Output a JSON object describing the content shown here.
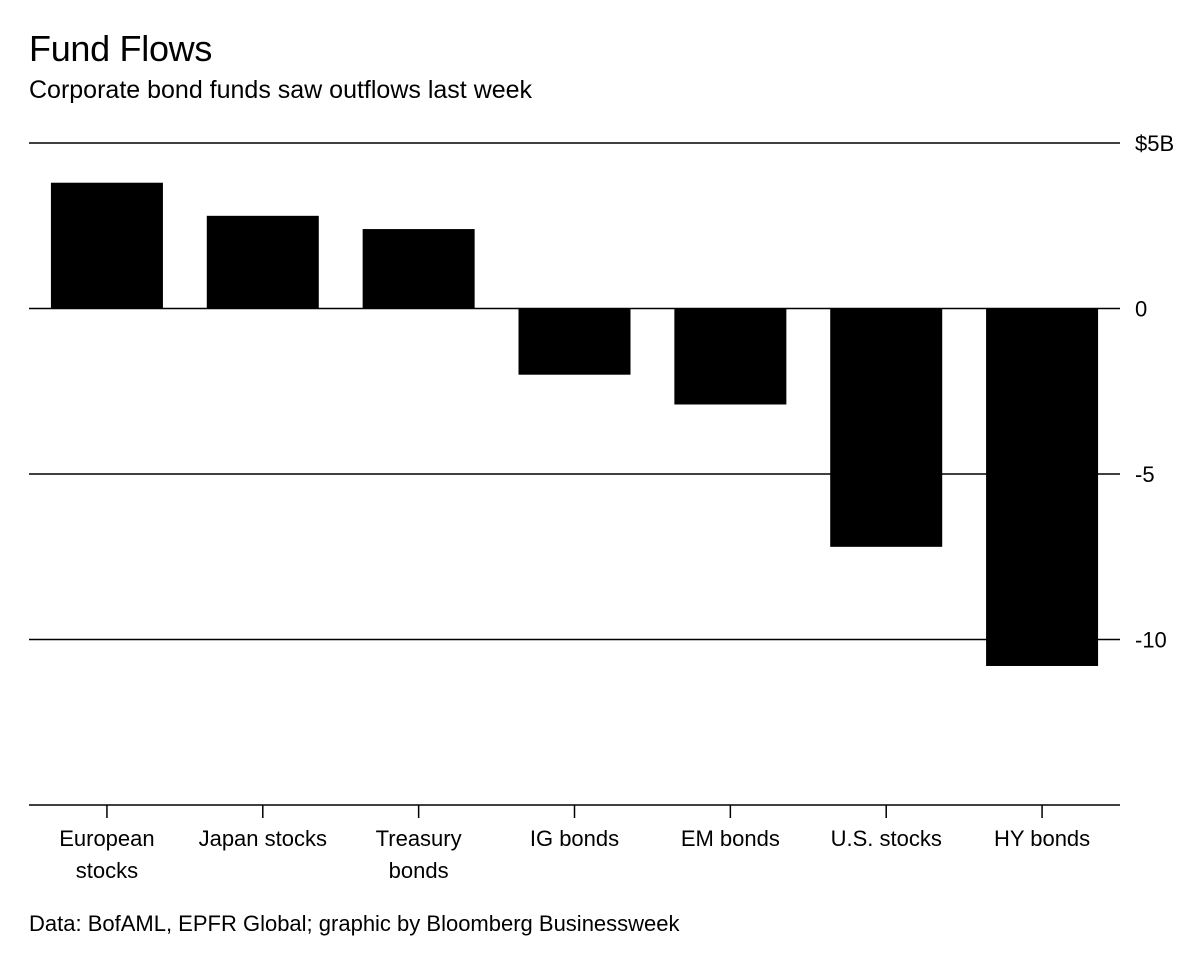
{
  "header": {
    "title": "Fund Flows",
    "subtitle": "Corporate bond funds saw outflows last week"
  },
  "footer": {
    "source": "Data: BofAML, EPFR Global; graphic by Bloomberg Businessweek"
  },
  "colors": {
    "bar": "#000000",
    "gridline": "#000000",
    "background": "#ffffff"
  },
  "chart_data": {
    "type": "bar",
    "title": "Fund Flows",
    "subtitle": "Corporate bond funds saw outflows last week",
    "categories": [
      [
        "European",
        "stocks"
      ],
      [
        "Japan stocks"
      ],
      [
        "Treasury",
        "bonds"
      ],
      [
        "IG bonds"
      ],
      [
        "EM bonds"
      ],
      [
        "U.S. stocks"
      ],
      [
        "HY bonds"
      ]
    ],
    "values": [
      3.8,
      2.8,
      2.4,
      -2.0,
      -2.9,
      -7.2,
      -10.8
    ],
    "unit": "billions of dollars",
    "ylim": [
      -15,
      5
    ],
    "y_ticks": [
      5,
      0,
      -5,
      -10
    ],
    "y_tick_labels": [
      "$5B",
      "0",
      "-5",
      "-10"
    ],
    "y_axis_side": "right",
    "grid": true,
    "legend": "none"
  }
}
